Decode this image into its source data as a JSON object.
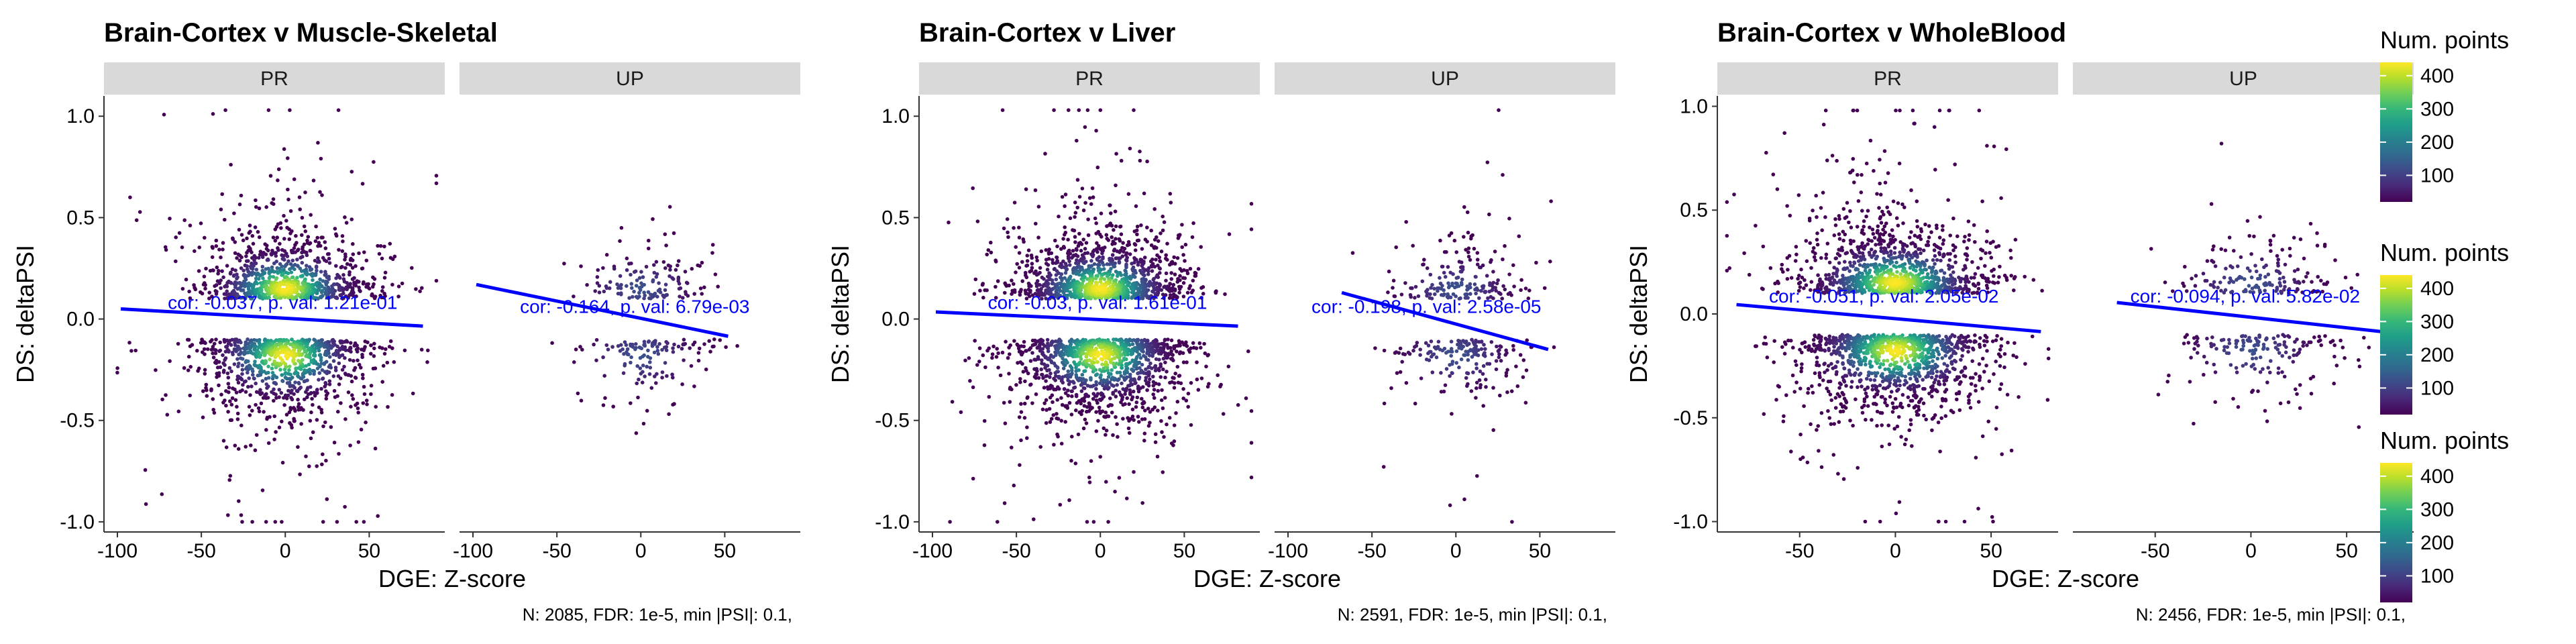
{
  "chart_data": [
    {
      "type": "scatter",
      "title": "Brain-Cortex v Muscle-Skeletal",
      "xlabel": "DGE: Z-score",
      "ylabel": "DS: deltaPSI",
      "footnote": "N: 2085, FDR: 1e-5, min |PSI|: 0.1,",
      "ylim": [
        -1.05,
        1.1
      ],
      "yticks": [
        -1.0,
        -0.5,
        0.0,
        0.5,
        1.0
      ],
      "ytick_labels": [
        "-1.0",
        "-0.5",
        "0.0",
        "0.5",
        "1.0"
      ],
      "panels": [
        {
          "strip": "PR",
          "xlim": [
            -108,
            95
          ],
          "xticks": [
            -100,
            -50,
            0,
            50
          ],
          "xtick_labels": [
            "-100",
            "-50",
            "0",
            "50"
          ],
          "annotation": "cor: -0.037, p. val: 1.21e-01",
          "annotation_at": [
            -70,
            0.05
          ],
          "fit": {
            "x": [
              -98,
              82
            ],
            "y": [
              0.05,
              -0.035
            ]
          },
          "point_clusters": [
            {
              "x": 0,
              "y": 0.15,
              "sx": 25,
              "sy": 0.15,
              "n": 850
            },
            {
              "x": 0,
              "y": -0.18,
              "sx": 26,
              "sy": 0.17,
              "n": 850
            },
            {
              "x": 0,
              "y": 0.0,
              "sx": 38,
              "sy": 0.5,
              "n": 250
            }
          ]
        },
        {
          "strip": "UP",
          "xlim": [
            -108,
            95
          ],
          "xticks": [
            -100,
            -50,
            0,
            50
          ],
          "xtick_labels": [
            "-100",
            "-50",
            "0",
            "50"
          ],
          "annotation": "cor: -0.164, p. val: 6.79e-03",
          "annotation_at": [
            -72,
            0.03
          ],
          "fit": {
            "x": [
              -98,
              52
            ],
            "y": [
              0.17,
              -0.085
            ]
          },
          "point_clusters": [
            {
              "x": 5,
              "y": 0.15,
              "sx": 18,
              "sy": 0.12,
              "n": 120
            },
            {
              "x": 5,
              "y": -0.14,
              "sx": 19,
              "sy": 0.12,
              "n": 120
            },
            {
              "x": 5,
              "y": 0.0,
              "sx": 22,
              "sy": 0.35,
              "n": 30
            }
          ]
        }
      ]
    },
    {
      "type": "scatter",
      "title": "Brain-Cortex v Liver",
      "xlabel": "DGE: Z-score",
      "ylabel": "DS: deltaPSI",
      "footnote": "N: 2591, FDR: 1e-5, min |PSI|: 0.1,",
      "ylim": [
        -1.05,
        1.1
      ],
      "yticks": [
        -1.0,
        -0.5,
        0.0,
        0.5,
        1.0
      ],
      "ytick_labels": [
        "-1.0",
        "-0.5",
        "0.0",
        "0.5",
        "1.0"
      ],
      "panels": [
        {
          "strip": "PR",
          "xlim": [
            -108,
            95
          ],
          "xticks": [
            -100,
            -50,
            0,
            50
          ],
          "xtick_labels": [
            "-100",
            "-50",
            "0",
            "50"
          ],
          "annotation": "cor: -0.03, p. val: 1.61e-01",
          "annotation_at": [
            -67,
            0.05
          ],
          "fit": {
            "x": [
              -98,
              82
            ],
            "y": [
              0.035,
              -0.035
            ]
          },
          "point_clusters": [
            {
              "x": 0,
              "y": 0.15,
              "sx": 25,
              "sy": 0.15,
              "n": 1050
            },
            {
              "x": 0,
              "y": -0.18,
              "sx": 26,
              "sy": 0.17,
              "n": 1050
            },
            {
              "x": 0,
              "y": 0.0,
              "sx": 38,
              "sy": 0.5,
              "n": 300
            }
          ]
        },
        {
          "strip": "UP",
          "xlim": [
            -108,
            95
          ],
          "xticks": [
            -100,
            -50,
            0,
            50
          ],
          "xtick_labels": [
            "-100",
            "-50",
            "0",
            "50"
          ],
          "annotation": "cor: -0.198, p. val: 2.58e-05",
          "annotation_at": [
            -86,
            0.03
          ],
          "fit": {
            "x": [
              -68,
              55
            ],
            "y": [
              0.13,
              -0.15
            ]
          },
          "point_clusters": [
            {
              "x": 5,
              "y": 0.15,
              "sx": 20,
              "sy": 0.13,
              "n": 170
            },
            {
              "x": 5,
              "y": -0.14,
              "sx": 20,
              "sy": 0.13,
              "n": 170
            },
            {
              "x": 5,
              "y": 0.0,
              "sx": 24,
              "sy": 0.38,
              "n": 40
            }
          ]
        }
      ]
    },
    {
      "type": "scatter",
      "title": "Brain-Cortex v WholeBlood",
      "xlabel": "DGE: Z-score",
      "ylabel": "DS: deltaPSI",
      "footnote": "N: 2456, FDR: 1e-5, min |PSI|: 0.1,",
      "ylim": [
        -1.05,
        1.05
      ],
      "yticks": [
        -1.0,
        -0.5,
        0.0,
        0.5,
        1.0
      ],
      "ytick_labels": [
        "-1.0",
        "-0.5",
        "0.0",
        "0.5",
        "1.0"
      ],
      "panels": [
        {
          "strip": "PR",
          "xlim": [
            -93,
            85
          ],
          "xticks": [
            -50,
            0,
            50
          ],
          "xtick_labels": [
            "-50",
            "0",
            "50"
          ],
          "annotation": "cor: -0.051, p. val: 2.05e-02",
          "annotation_at": [
            -66,
            0.055
          ],
          "fit": {
            "x": [
              -83,
              76
            ],
            "y": [
              0.045,
              -0.085
            ]
          },
          "point_clusters": [
            {
              "x": 0,
              "y": 0.15,
              "sx": 24,
              "sy": 0.15,
              "n": 1000
            },
            {
              "x": 0,
              "y": -0.18,
              "sx": 25,
              "sy": 0.17,
              "n": 1000
            },
            {
              "x": 0,
              "y": 0.0,
              "sx": 35,
              "sy": 0.5,
              "n": 280
            }
          ]
        },
        {
          "strip": "UP",
          "xlim": [
            -93,
            85
          ],
          "xticks": [
            -50,
            0,
            50
          ],
          "xtick_labels": [
            "-50",
            "0",
            "50"
          ],
          "annotation": "cor: -0.094, p. val: 5.82e-02",
          "annotation_at": [
            -63,
            0.055
          ],
          "fit": {
            "x": [
              -70,
              78
            ],
            "y": [
              0.055,
              -0.095
            ]
          },
          "point_clusters": [
            {
              "x": 5,
              "y": 0.15,
              "sx": 20,
              "sy": 0.12,
              "n": 150
            },
            {
              "x": 5,
              "y": -0.14,
              "sx": 21,
              "sy": 0.12,
              "n": 150
            },
            {
              "x": 5,
              "y": 0.0,
              "sx": 24,
              "sy": 0.36,
              "n": 30
            }
          ]
        }
      ]
    }
  ],
  "legend": {
    "title": "Num. points",
    "ticks": [
      100,
      200,
      300,
      400
    ],
    "tick_labels": [
      "100",
      "200",
      "300",
      "400"
    ],
    "range": [
      20,
      440
    ],
    "count": 3,
    "palette": [
      "#440154",
      "#482878",
      "#3e4989",
      "#31688e",
      "#26828e",
      "#1f9e89",
      "#35b779",
      "#6ece58",
      "#b5de2b",
      "#fde725"
    ]
  },
  "colors": {
    "fit_line": "#0000ff",
    "annotation": "#0000ff",
    "strip_fill": "#d9d9d9",
    "axis": "#333333",
    "text": "#000000"
  }
}
